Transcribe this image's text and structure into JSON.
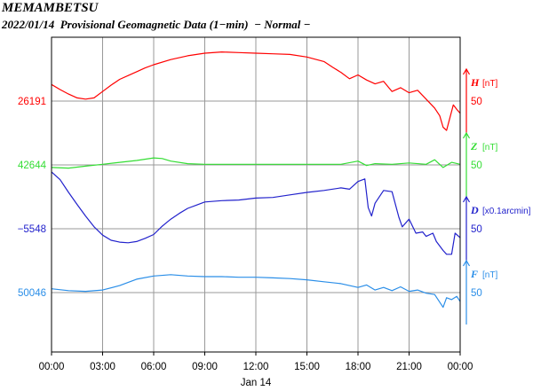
{
  "header": {
    "station": "MEMAMBETSU",
    "subtitle": "2022/01/14  Provisional Geomagnetic Data (1−min)  − Normal −"
  },
  "chart_data": {
    "type": "line",
    "title": "MEMAMBETSU",
    "subtitle": "2022/01/14  Provisional Geomagnetic Data (1−min)  − Normal −",
    "xlabel": "Jan 14",
    "x_ticks": [
      "00:00",
      "03:00",
      "06:00",
      "09:00",
      "12:00",
      "15:00",
      "18:00",
      "21:00",
      "00:00"
    ],
    "x_range_hours": [
      0,
      24
    ],
    "grid": true,
    "series": [
      {
        "name": "H",
        "unit": "[nT]",
        "color": "#ff0000",
        "baseline": 26191,
        "scale_bar": 50,
        "points": [
          [
            0,
            26217
          ],
          [
            0.5,
            26209
          ],
          [
            1,
            26202
          ],
          [
            1.5,
            26196
          ],
          [
            2,
            26194
          ],
          [
            2.5,
            26196
          ],
          [
            3,
            26206
          ],
          [
            3.5,
            26216
          ],
          [
            4,
            26225
          ],
          [
            4.5,
            26231
          ],
          [
            5,
            26237
          ],
          [
            5.5,
            26243
          ],
          [
            6,
            26248
          ],
          [
            7,
            26256
          ],
          [
            8,
            26262
          ],
          [
            9,
            26266
          ],
          [
            10,
            26268
          ],
          [
            11,
            26267
          ],
          [
            12,
            26266
          ],
          [
            13,
            26265
          ],
          [
            14,
            26264
          ],
          [
            15,
            26260
          ],
          [
            16,
            26253
          ],
          [
            16.5,
            26244
          ],
          [
            17,
            26236
          ],
          [
            17.5,
            26226
          ],
          [
            18,
            26232
          ],
          [
            18.5,
            26224
          ],
          [
            19,
            26218
          ],
          [
            19.5,
            26222
          ],
          [
            20,
            26206
          ],
          [
            20.5,
            26212
          ],
          [
            21,
            26204
          ],
          [
            21.5,
            26208
          ],
          [
            22,
            26194
          ],
          [
            22.5,
            26180
          ],
          [
            22.8,
            26168
          ],
          [
            23,
            26150
          ],
          [
            23.2,
            26145
          ],
          [
            23.4,
            26165
          ],
          [
            23.6,
            26185
          ],
          [
            23.8,
            26178
          ],
          [
            24,
            26172
          ]
        ]
      },
      {
        "name": "Z",
        "unit": "[nT]",
        "color": "#33dd33",
        "baseline": 42644,
        "scale_bar": 50,
        "points": [
          [
            0,
            42640
          ],
          [
            1,
            42639
          ],
          [
            2,
            42642
          ],
          [
            3,
            42645
          ],
          [
            4,
            42648
          ],
          [
            5,
            42651
          ],
          [
            6,
            42655
          ],
          [
            6.5,
            42654
          ],
          [
            7,
            42650
          ],
          [
            8,
            42646
          ],
          [
            9,
            42645
          ],
          [
            10,
            42645
          ],
          [
            12,
            42645
          ],
          [
            14,
            42645
          ],
          [
            16,
            42645
          ],
          [
            17,
            42645
          ],
          [
            18,
            42650
          ],
          [
            18.5,
            42643
          ],
          [
            19,
            42646
          ],
          [
            20,
            42645
          ],
          [
            21,
            42647
          ],
          [
            22,
            42645
          ],
          [
            22.5,
            42652
          ],
          [
            23,
            42640
          ],
          [
            23.5,
            42648
          ],
          [
            24,
            42645
          ]
        ]
      },
      {
        "name": "D",
        "unit": "[x0.1arcmin]",
        "color": "#2222cc",
        "baseline": -5548,
        "scale_bar": 50,
        "points": [
          [
            0,
            -5459
          ],
          [
            0.5,
            -5471
          ],
          [
            1,
            -5491
          ],
          [
            1.5,
            -5510
          ],
          [
            2,
            -5528
          ],
          [
            2.5,
            -5545
          ],
          [
            3,
            -5558
          ],
          [
            3.5,
            -5566
          ],
          [
            4,
            -5569
          ],
          [
            4.5,
            -5570
          ],
          [
            5,
            -5568
          ],
          [
            5.5,
            -5563
          ],
          [
            6,
            -5557
          ],
          [
            6.5,
            -5544
          ],
          [
            7,
            -5533
          ],
          [
            7.5,
            -5524
          ],
          [
            8,
            -5516
          ],
          [
            8.5,
            -5511
          ],
          [
            9,
            -5506
          ],
          [
            10,
            -5504
          ],
          [
            11,
            -5503
          ],
          [
            12,
            -5500
          ],
          [
            13,
            -5499
          ],
          [
            14,
            -5495
          ],
          [
            15,
            -5491
          ],
          [
            16,
            -5488
          ],
          [
            17,
            -5484
          ],
          [
            17.5,
            -5486
          ],
          [
            18,
            -5474
          ],
          [
            18.4,
            -5470
          ],
          [
            18.6,
            -5515
          ],
          [
            18.8,
            -5528
          ],
          [
            19,
            -5508
          ],
          [
            19.5,
            -5488
          ],
          [
            20,
            -5490
          ],
          [
            20.4,
            -5530
          ],
          [
            20.6,
            -5545
          ],
          [
            21,
            -5533
          ],
          [
            21.4,
            -5555
          ],
          [
            21.8,
            -5553
          ],
          [
            22,
            -5560
          ],
          [
            22.4,
            -5555
          ],
          [
            22.6,
            -5568
          ],
          [
            23,
            -5582
          ],
          [
            23.2,
            -5588
          ],
          [
            23.5,
            -5588
          ],
          [
            23.7,
            -5555
          ],
          [
            24,
            -5562
          ]
        ]
      },
      {
        "name": "F",
        "unit": "[nT]",
        "color": "#2a8ee8",
        "baseline": 50046,
        "scale_bar": 50,
        "points": [
          [
            0,
            50052
          ],
          [
            1,
            50049
          ],
          [
            2,
            50048
          ],
          [
            3,
            50050
          ],
          [
            4,
            50057
          ],
          [
            5,
            50067
          ],
          [
            6,
            50072
          ],
          [
            7,
            50074
          ],
          [
            8,
            50072
          ],
          [
            9,
            50071
          ],
          [
            10,
            50071
          ],
          [
            11,
            50070
          ],
          [
            12,
            50070
          ],
          [
            13,
            50069
          ],
          [
            14,
            50068
          ],
          [
            15,
            50066
          ],
          [
            16,
            50063
          ],
          [
            17,
            50060
          ],
          [
            18,
            50054
          ],
          [
            18.5,
            50058
          ],
          [
            19,
            50050
          ],
          [
            19.5,
            50054
          ],
          [
            20,
            50049
          ],
          [
            20.5,
            50055
          ],
          [
            21,
            50048
          ],
          [
            21.5,
            50050
          ],
          [
            22,
            50045
          ],
          [
            22.5,
            50043
          ],
          [
            23,
            50023
          ],
          [
            23.2,
            50038
          ],
          [
            23.5,
            50035
          ],
          [
            23.8,
            50040
          ],
          [
            24,
            50032
          ]
        ]
      }
    ]
  }
}
